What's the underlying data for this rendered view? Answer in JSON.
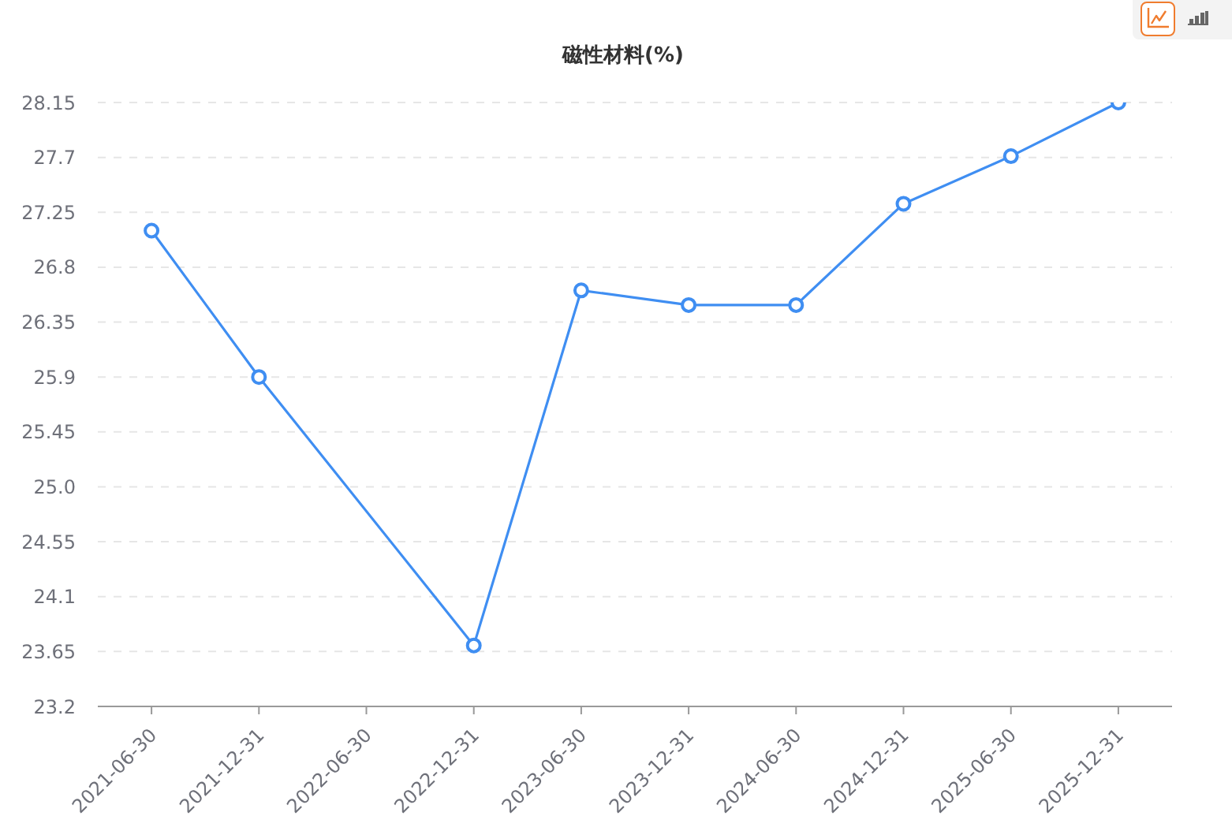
{
  "chart_data": {
    "type": "line",
    "title": "磁性材料(%)",
    "categories": [
      "2021-06-30",
      "2021-12-31",
      "2022-06-30",
      "2022-12-31",
      "2023-06-30",
      "2023-12-31",
      "2024-06-30",
      "2024-12-31",
      "2025-06-30",
      "2025-12-31"
    ],
    "series": [
      {
        "color": "#3f8ef2",
        "values": [
          27.1,
          25.9,
          null,
          23.7,
          26.61,
          26.49,
          26.49,
          27.32,
          27.71,
          28.15
        ]
      }
    ],
    "ylim": [
      23.2,
      28.15
    ],
    "yticks": [
      23.2,
      23.65,
      24.1,
      24.55,
      {
        "value": 25,
        "label": "25.0"
      },
      25.45,
      25.9,
      26.35,
      26.8,
      27.25,
      27.7,
      28.15
    ],
    "grid": "y",
    "marker": "circle",
    "line_style": "solid"
  }
}
